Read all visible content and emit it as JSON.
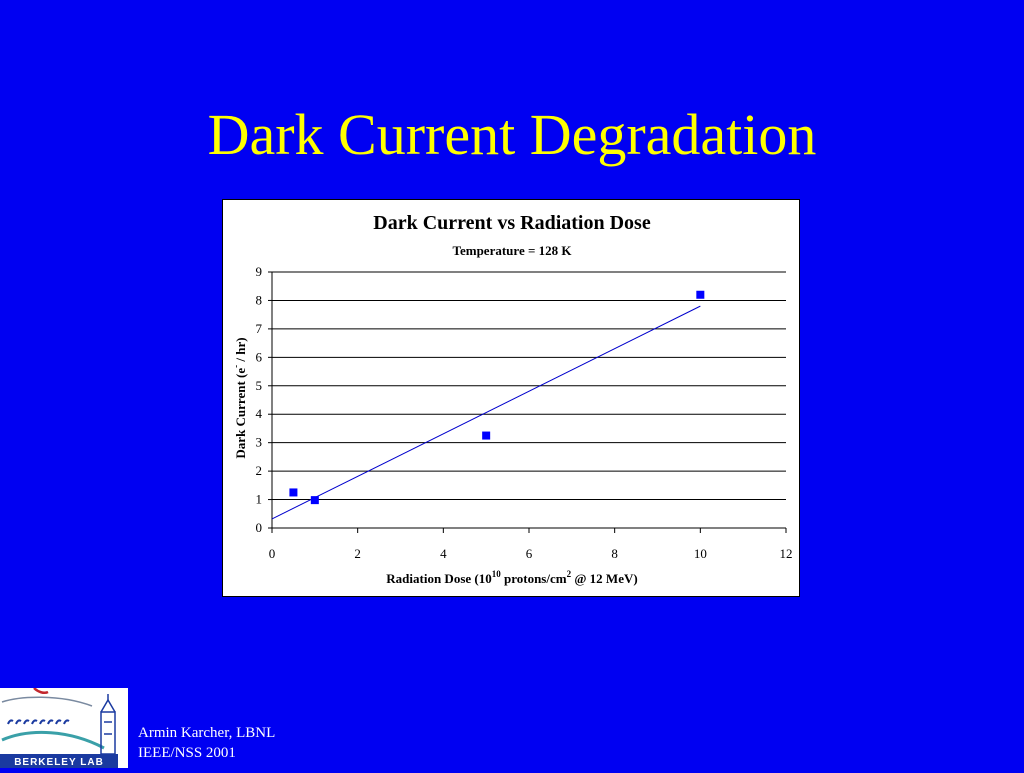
{
  "slide": {
    "title": "Dark Current Degradation"
  },
  "chart_data": {
    "type": "scatter",
    "title": "Dark Current vs Radiation Dose",
    "subtitle": "Temperature = 128 K",
    "xlabel_parts": [
      "Radiation Dose (10",
      "10",
      " protons/cm",
      "2",
      " @ 12 MeV)"
    ],
    "ylabel_parts": [
      "Dark Current (e",
      "-",
      " / hr)"
    ],
    "xlim": [
      0,
      12
    ],
    "ylim": [
      0,
      9
    ],
    "xticks": [
      0,
      2,
      4,
      6,
      8,
      10,
      12
    ],
    "yticks": [
      0,
      1,
      2,
      3,
      4,
      5,
      6,
      7,
      8,
      9
    ],
    "grid": "horizontal",
    "legend": "none",
    "marker_color": "#0000ff",
    "series": [
      {
        "x": [
          0.5,
          1,
          5,
          10
        ],
        "y": [
          1.25,
          0.98,
          3.25,
          8.2
        ]
      }
    ],
    "trendline": {
      "x": [
        0,
        10
      ],
      "y": [
        0.32,
        7.8
      ]
    }
  },
  "footer": {
    "line1": "Armin Karcher, LBNL",
    "line2": "IEEE/NSS 2001"
  },
  "logo": {
    "text": "BERKELEY LAB",
    "icon": "berkeley-lab-logo"
  },
  "colors": {
    "background": "#0000f2",
    "title": "#ffff00",
    "footer_text": "#ffffff"
  }
}
